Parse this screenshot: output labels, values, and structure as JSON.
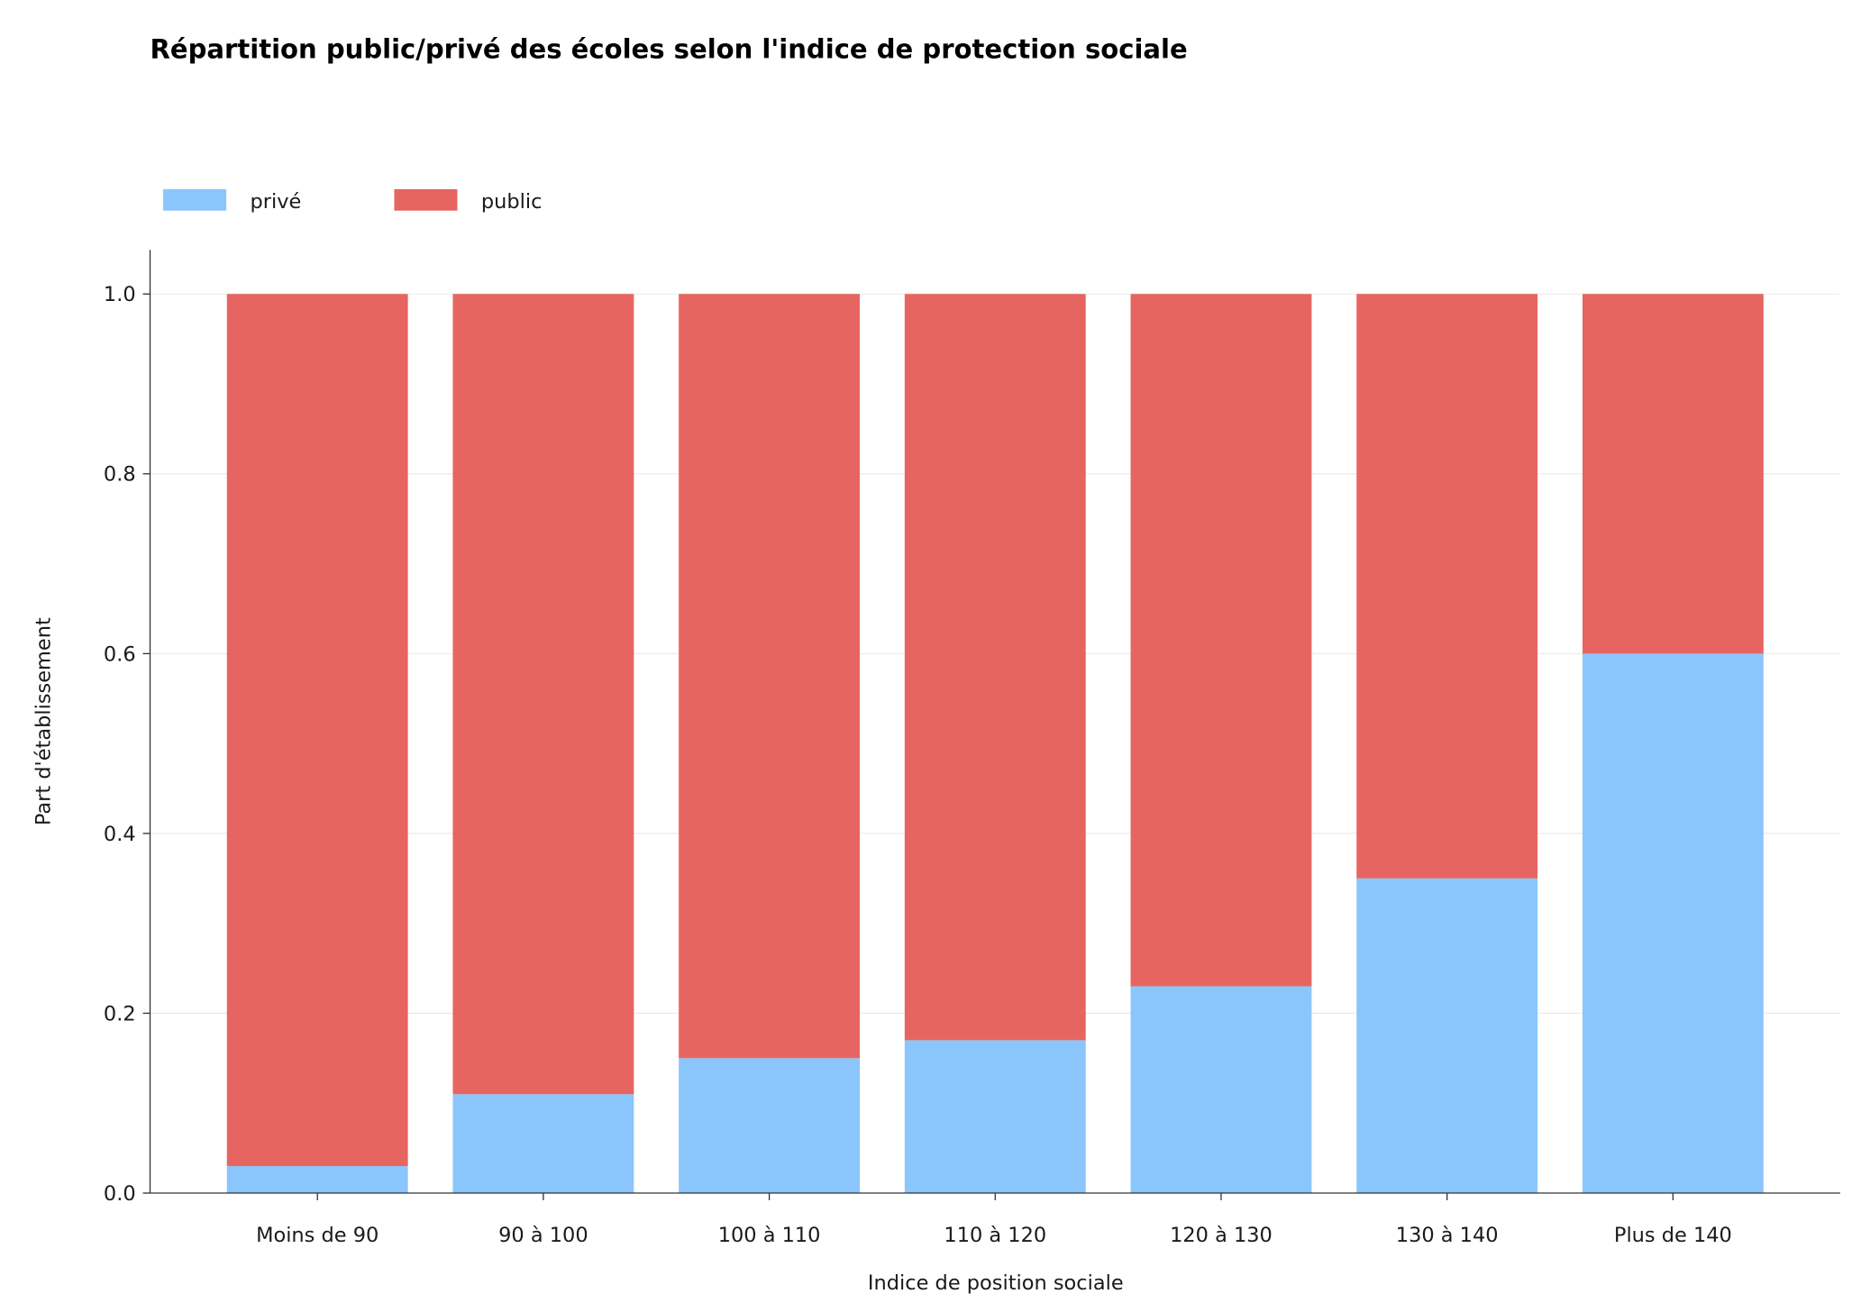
{
  "chart_data": {
    "type": "bar",
    "stacked": true,
    "title": "Répartition public/privé des écoles selon l'indice de protection sociale",
    "xlabel": "Indice de position sociale",
    "ylabel": "Part d'établissement",
    "categories": [
      "Moins de 90",
      "90 à 100",
      "100 à 110",
      "110 à 120",
      "120 à 130",
      "130 à 140",
      "Plus de 140"
    ],
    "series": [
      {
        "name": "privé",
        "color": "#8ac6fb",
        "values": [
          0.03,
          0.11,
          0.15,
          0.17,
          0.23,
          0.35,
          0.6
        ]
      },
      {
        "name": "public",
        "color": "#e76561",
        "values": [
          0.97,
          0.89,
          0.85,
          0.83,
          0.77,
          0.65,
          0.4
        ]
      }
    ],
    "ylim": [
      0,
      1.05
    ],
    "yticks": [
      0.0,
      0.2,
      0.4,
      0.6,
      0.8,
      1.0
    ],
    "ytick_labels": [
      "0.0",
      "0.2",
      "0.4",
      "0.6",
      "0.8",
      "1.0"
    ],
    "grid": true,
    "legend_position": "top-left"
  }
}
